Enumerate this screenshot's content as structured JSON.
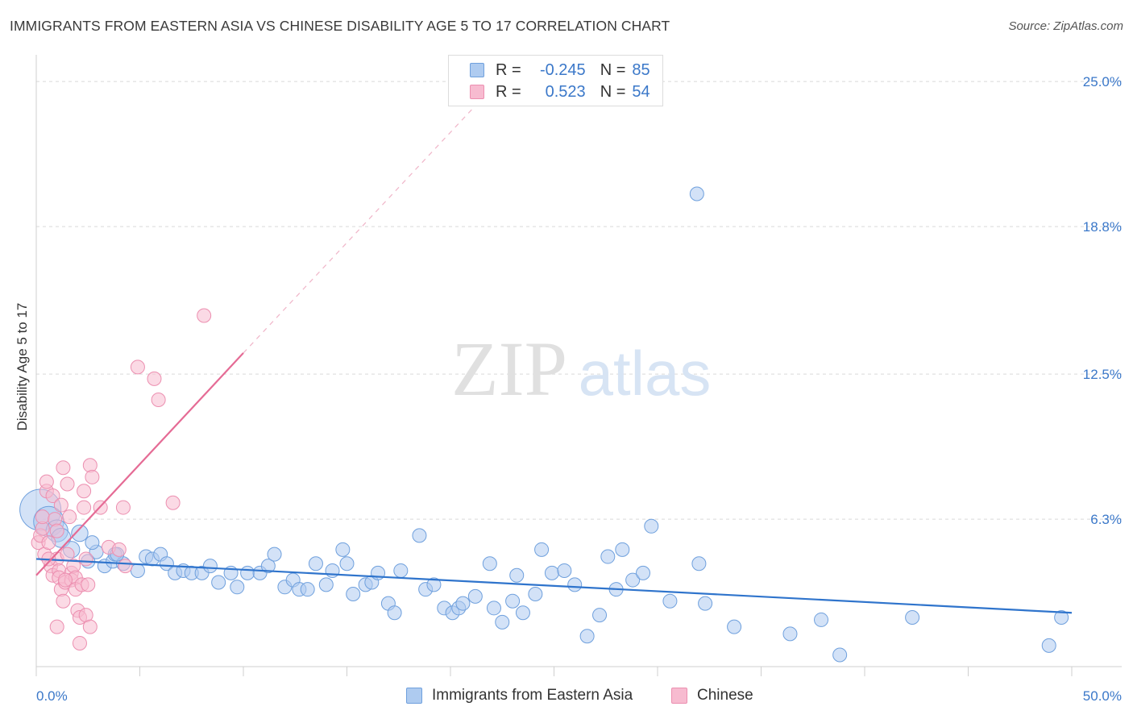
{
  "title": "IMMIGRANTS FROM EASTERN ASIA VS CHINESE DISABILITY AGE 5 TO 17 CORRELATION CHART",
  "source": "Source: ZipAtlas.com",
  "watermark": {
    "zip": "ZIP",
    "atlas": "atlas"
  },
  "legend_top": [
    {
      "r_label": "R =",
      "r_value": "-0.245",
      "n_label": "N =",
      "n_value": "85",
      "color": "#aecbf0"
    },
    {
      "r_label": "R =",
      "r_value": "0.523",
      "n_label": "N =",
      "n_value": "54",
      "color": "#f7bbd0"
    }
  ],
  "legend_bottom": [
    {
      "label": "Immigrants from Eastern Asia",
      "color": "#aecbf0"
    },
    {
      "label": "Chinese",
      "color": "#f7bbd0"
    }
  ],
  "colors": {
    "blue_fill": "#aecbf0",
    "blue_stroke": "#6fa0dd",
    "blue_line": "#2f74cc",
    "pink_fill": "#f7bbd0",
    "pink_stroke": "#ec8fb0",
    "pink_line": "#e56b95",
    "tick_label": "#3b78c9",
    "grid": "#d9d9d9"
  },
  "chart_data": {
    "type": "scatter",
    "title": "IMMIGRANTS FROM EASTERN ASIA VS CHINESE DISABILITY AGE 5 TO 17 CORRELATION CHART",
    "xlabel": "",
    "ylabel": "Disability Age 5 to 17",
    "xlim": [
      0,
      50
    ],
    "ylim": [
      0,
      25.9
    ],
    "x_tick_labels": [
      "0.0%",
      "50.0%"
    ],
    "y_ticks": [
      6.3,
      12.5,
      18.8,
      25.0
    ],
    "y_tick_labels": [
      "6.3%",
      "12.5%",
      "18.8%",
      "25.0%"
    ],
    "grid": true,
    "legend_position": "top-center",
    "series": [
      {
        "name": "Immigrants from Eastern Asia",
        "trend": {
          "x": [
            0,
            50
          ],
          "y": [
            4.6,
            2.3
          ],
          "style": "solid"
        },
        "points": [
          [
            0.2,
            6.7
          ],
          [
            0.6,
            6.2
          ],
          [
            1.0,
            5.8
          ],
          [
            1.2,
            5.5
          ],
          [
            1.7,
            5.0
          ],
          [
            2.1,
            5.7
          ],
          [
            2.5,
            4.5
          ],
          [
            2.9,
            4.9
          ],
          [
            3.3,
            4.3
          ],
          [
            3.7,
            4.5
          ],
          [
            3.8,
            4.8
          ],
          [
            4.2,
            4.4
          ],
          [
            4.9,
            4.1
          ],
          [
            5.3,
            4.7
          ],
          [
            5.6,
            4.6
          ],
          [
            6.0,
            4.8
          ],
          [
            6.3,
            4.4
          ],
          [
            6.7,
            4.0
          ],
          [
            7.1,
            4.1
          ],
          [
            7.5,
            4.0
          ],
          [
            8.0,
            4.0
          ],
          [
            8.4,
            4.3
          ],
          [
            8.8,
            3.6
          ],
          [
            9.4,
            4.0
          ],
          [
            9.7,
            3.4
          ],
          [
            10.2,
            4.0
          ],
          [
            10.8,
            4.0
          ],
          [
            11.2,
            4.3
          ],
          [
            11.5,
            4.8
          ],
          [
            12.0,
            3.4
          ],
          [
            12.4,
            3.7
          ],
          [
            12.7,
            3.3
          ],
          [
            13.1,
            3.3
          ],
          [
            13.5,
            4.4
          ],
          [
            14.0,
            3.5
          ],
          [
            14.3,
            4.1
          ],
          [
            14.8,
            5.0
          ],
          [
            15.0,
            4.4
          ],
          [
            15.3,
            3.1
          ],
          [
            15.9,
            3.5
          ],
          [
            16.2,
            3.6
          ],
          [
            16.5,
            4.0
          ],
          [
            17.0,
            2.7
          ],
          [
            17.3,
            2.3
          ],
          [
            17.6,
            4.1
          ],
          [
            18.5,
            5.6
          ],
          [
            18.8,
            3.3
          ],
          [
            19.2,
            3.5
          ],
          [
            19.7,
            2.5
          ],
          [
            20.1,
            2.3
          ],
          [
            20.4,
            2.5
          ],
          [
            20.6,
            2.7
          ],
          [
            21.2,
            3.0
          ],
          [
            21.9,
            4.4
          ],
          [
            22.1,
            2.5
          ],
          [
            22.5,
            1.9
          ],
          [
            23.0,
            2.8
          ],
          [
            23.2,
            3.9
          ],
          [
            23.5,
            2.3
          ],
          [
            24.1,
            3.1
          ],
          [
            24.4,
            5.0
          ],
          [
            24.9,
            4.0
          ],
          [
            25.5,
            4.1
          ],
          [
            26.0,
            3.5
          ],
          [
            26.6,
            1.3
          ],
          [
            27.2,
            2.2
          ],
          [
            27.6,
            4.7
          ],
          [
            28.0,
            3.3
          ],
          [
            28.3,
            5.0
          ],
          [
            28.8,
            3.7
          ],
          [
            29.3,
            4.0
          ],
          [
            29.7,
            6.0
          ],
          [
            30.6,
            2.8
          ],
          [
            31.9,
            20.2
          ],
          [
            32.0,
            4.4
          ],
          [
            32.3,
            2.7
          ],
          [
            33.7,
            1.7
          ],
          [
            36.4,
            1.4
          ],
          [
            37.9,
            2.0
          ],
          [
            38.8,
            0.5
          ],
          [
            42.3,
            2.1
          ],
          [
            48.9,
            0.9
          ],
          [
            49.5,
            2.1
          ],
          [
            3.9,
            4.8
          ],
          [
            2.7,
            5.3
          ]
        ],
        "sizes": [
          30,
          22,
          16,
          14,
          12,
          12,
          10,
          10,
          10,
          10,
          10,
          10,
          10,
          10,
          10,
          10,
          10,
          10,
          10,
          10,
          10,
          10,
          10,
          10,
          10,
          10,
          10,
          10,
          10,
          10,
          10,
          10,
          10,
          10,
          10,
          10,
          10,
          10,
          10,
          10,
          10,
          10,
          10,
          10,
          10,
          10,
          10,
          10,
          10,
          10,
          10,
          10,
          10,
          10,
          10,
          10,
          10,
          10,
          10,
          10,
          10,
          10,
          10,
          10,
          10,
          10,
          10,
          10,
          10,
          10,
          10,
          10,
          10,
          10,
          10,
          10,
          10,
          10,
          10,
          10,
          10,
          10,
          10,
          10,
          10
        ]
      },
      {
        "name": "Chinese",
        "trend": {
          "x": [
            0,
            10
          ],
          "y": [
            3.9,
            13.4
          ],
          "style": "solid",
          "dashed_extension_to": [
            22.3,
            25.0
          ]
        },
        "points": [
          [
            0.1,
            5.3
          ],
          [
            0.2,
            5.6
          ],
          [
            0.3,
            5.9
          ],
          [
            0.3,
            6.4
          ],
          [
            0.4,
            4.8
          ],
          [
            0.5,
            7.5
          ],
          [
            0.5,
            7.9
          ],
          [
            0.6,
            5.3
          ],
          [
            0.7,
            4.3
          ],
          [
            0.8,
            3.9
          ],
          [
            0.8,
            7.3
          ],
          [
            0.9,
            6.3
          ],
          [
            1.0,
            4.6
          ],
          [
            1.0,
            5.8
          ],
          [
            1.1,
            4.1
          ],
          [
            1.1,
            3.8
          ],
          [
            1.2,
            6.9
          ],
          [
            1.2,
            3.3
          ],
          [
            1.3,
            8.5
          ],
          [
            1.3,
            2.8
          ],
          [
            1.4,
            3.6
          ],
          [
            1.5,
            7.8
          ],
          [
            1.5,
            4.8
          ],
          [
            1.6,
            6.4
          ],
          [
            1.7,
            4.0
          ],
          [
            1.7,
            3.7
          ],
          [
            1.8,
            4.3
          ],
          [
            1.9,
            3.8
          ],
          [
            1.9,
            3.3
          ],
          [
            2.0,
            2.4
          ],
          [
            2.1,
            2.1
          ],
          [
            2.1,
            1.0
          ],
          [
            2.2,
            3.5
          ],
          [
            2.3,
            7.5
          ],
          [
            2.3,
            6.8
          ],
          [
            2.4,
            2.2
          ],
          [
            2.4,
            4.6
          ],
          [
            2.5,
            3.5
          ],
          [
            2.6,
            1.7
          ],
          [
            2.6,
            8.6
          ],
          [
            2.7,
            8.1
          ],
          [
            3.1,
            6.8
          ],
          [
            3.5,
            5.1
          ],
          [
            4.0,
            5.0
          ],
          [
            4.2,
            6.8
          ],
          [
            4.3,
            4.3
          ],
          [
            4.9,
            12.8
          ],
          [
            5.7,
            12.3
          ],
          [
            5.9,
            11.4
          ],
          [
            6.6,
            7.0
          ],
          [
            8.1,
            15.0
          ],
          [
            1.0,
            1.7
          ],
          [
            0.6,
            4.6
          ],
          [
            1.4,
            3.7
          ]
        ],
        "sizes": [
          10,
          10,
          10,
          10,
          10,
          10,
          10,
          10,
          10,
          10,
          10,
          10,
          10,
          10,
          10,
          10,
          10,
          10,
          10,
          10,
          10,
          10,
          10,
          10,
          10,
          10,
          10,
          10,
          10,
          10,
          10,
          10,
          10,
          10,
          10,
          10,
          10,
          10,
          10,
          10,
          10,
          10,
          10,
          10,
          10,
          10,
          10,
          10,
          10,
          10,
          10,
          10,
          10,
          10
        ]
      }
    ]
  }
}
